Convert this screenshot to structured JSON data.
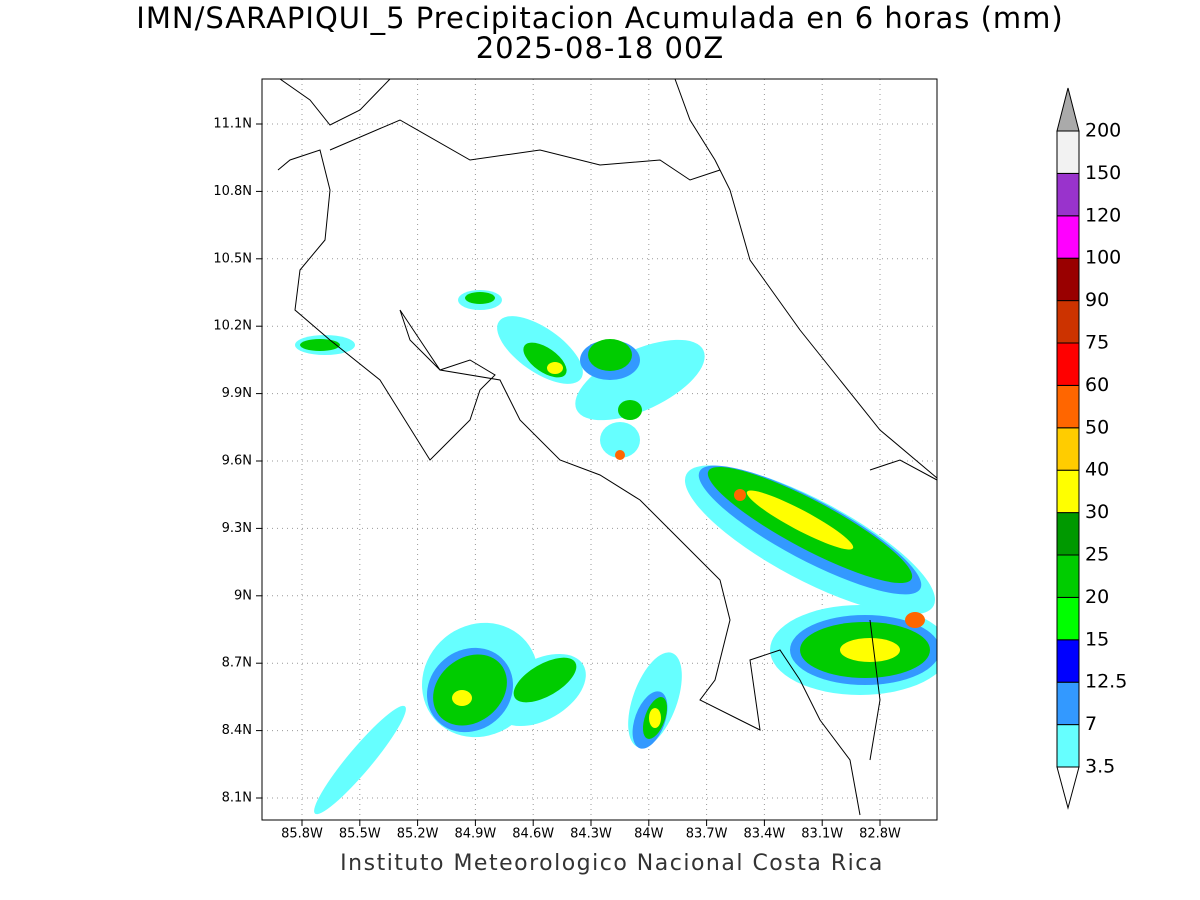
{
  "header": {
    "title": "IMN/SARAPIQUI_5 Precipitacion Acumulada en 6 horas (mm)",
    "subtitle": "2025-08-18 00Z"
  },
  "map": {
    "lon_ticks": [
      "85.8W",
      "85.5W",
      "85.2W",
      "84.9W",
      "84.6W",
      "84.3W",
      "84W",
      "83.7W",
      "83.4W",
      "83.1W",
      "82.8W"
    ],
    "lat_ticks": [
      "11.1N",
      "10.8N",
      "10.5N",
      "10.2N",
      "9.9N",
      "9.6N",
      "9.3N",
      "9N",
      "8.7N",
      "8.4N",
      "8.1N"
    ]
  },
  "colorbar": {
    "levels": [
      "3.5",
      "7",
      "12.5",
      "15",
      "20",
      "25",
      "30",
      "40",
      "50",
      "60",
      "75",
      "90",
      "100",
      "120",
      "150",
      "200"
    ],
    "colors": [
      "#66ffff",
      "#3399ff",
      "#0000ff",
      "#00ff00",
      "#00cc00",
      "#009900",
      "#ffff00",
      "#ffcc00",
      "#ff6600",
      "#ff0000",
      "#cc3300",
      "#990000",
      "#ff00ff",
      "#9933cc",
      "#f2f2f2"
    ],
    "over_color": "#aaaaaa",
    "under_color": "#ffffff"
  },
  "footer": {
    "credit": "Instituto Meteorologico Nacional Costa Rica"
  }
}
